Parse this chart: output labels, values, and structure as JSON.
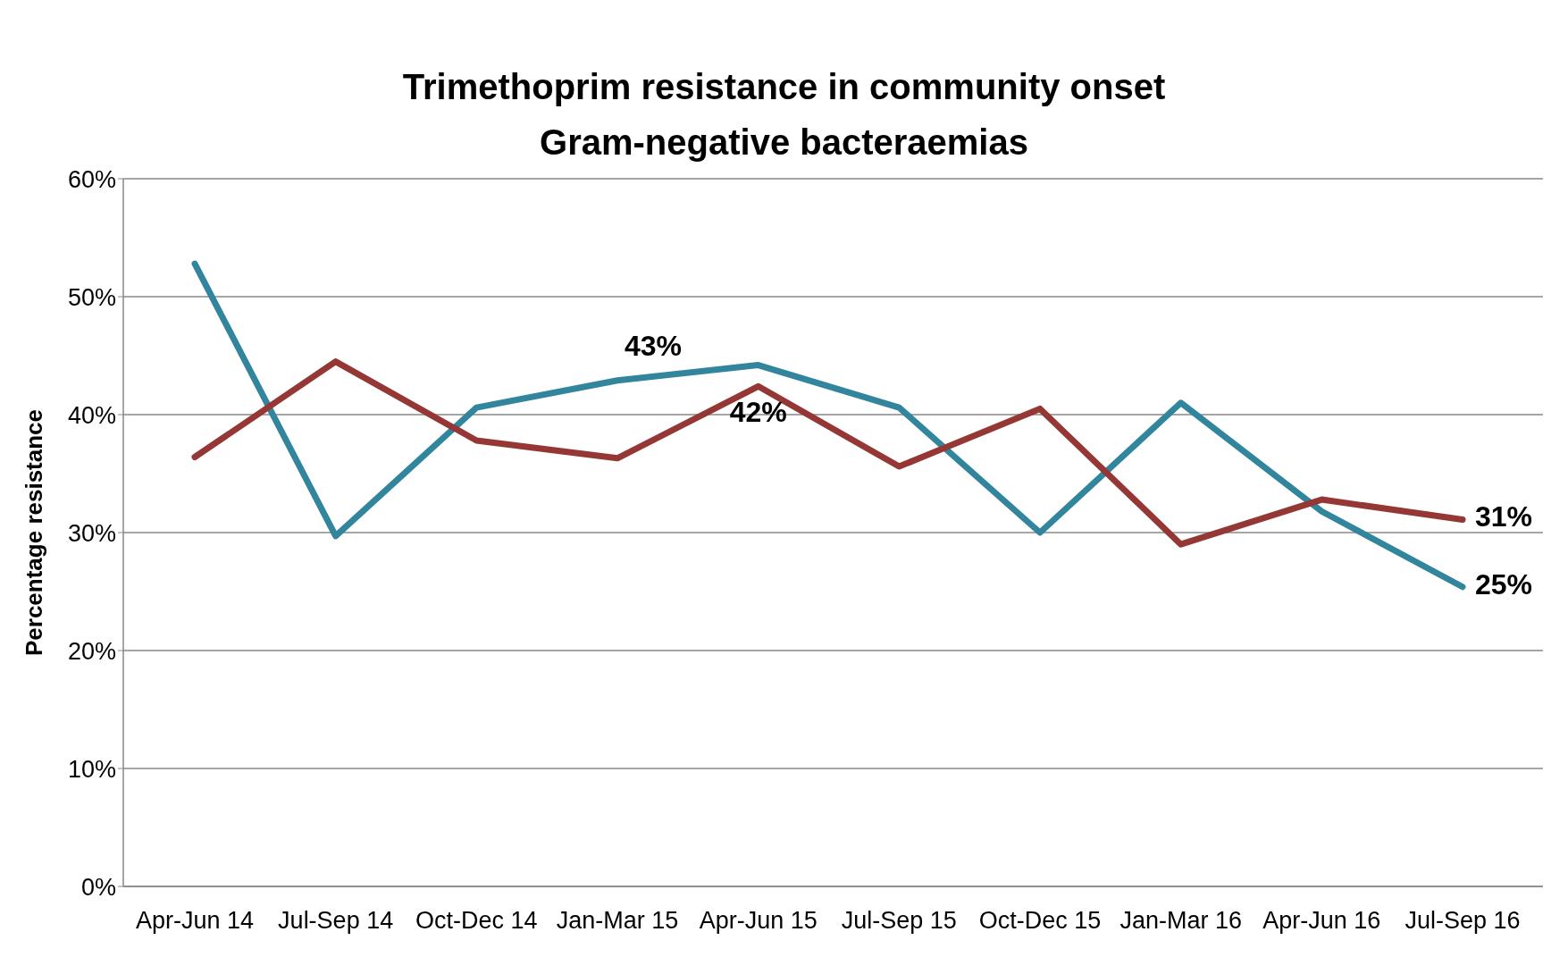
{
  "chart_data": {
    "type": "line",
    "title": "Trimethoprim resistance in community onset\nGram-negative bacteraemias",
    "ylabel": "Percentage resistance",
    "categories": [
      "Apr-Jun 14",
      "Jul-Sep 14",
      "Oct-Dec 14",
      "Jan-Mar 15",
      "Apr-Jun 15",
      "Jul-Sep 15",
      "Oct-Dec 15",
      "Jan-Mar 16",
      "Apr-Jun 16",
      "Jul-Sep 16"
    ],
    "series": [
      {
        "color": "#31859c",
        "values": [
          52.8,
          29.7,
          40.6,
          42.9,
          44.2,
          40.6,
          30.0,
          41.0,
          31.8,
          25.4
        ],
        "value_labels": [
          null,
          null,
          null,
          "43%",
          null,
          null,
          null,
          null,
          null,
          "25%"
        ]
      },
      {
        "color": "#953735",
        "values": [
          36.4,
          44.5,
          37.8,
          36.3,
          42.4,
          35.6,
          40.5,
          29.0,
          32.8,
          31.1
        ],
        "value_labels": [
          null,
          null,
          null,
          null,
          "42%",
          null,
          null,
          null,
          null,
          "31%"
        ]
      }
    ],
    "ylim": [
      0,
      60
    ],
    "yticks": [
      {
        "value": 0,
        "label": "0%"
      },
      {
        "value": 10,
        "label": "10%"
      },
      {
        "value": 20,
        "label": "20%"
      },
      {
        "value": 30,
        "label": "30%"
      },
      {
        "value": 40,
        "label": "40%"
      },
      {
        "value": 50,
        "label": "50%"
      },
      {
        "value": 60,
        "label": "60%"
      }
    ],
    "grid": "y",
    "legend": false,
    "marker": "none",
    "line_style": "solid"
  }
}
